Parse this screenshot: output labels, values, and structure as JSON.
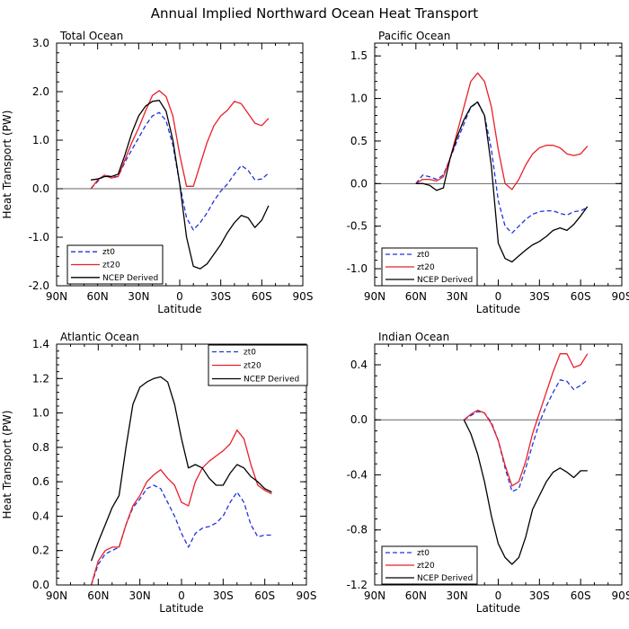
{
  "figure_title": "Annual Implied Northward Ocean Heat Transport",
  "colors": {
    "zt0": "#2233dd",
    "zt20": "#e8202a",
    "ncep": "#000000",
    "zero_line": "#666666"
  },
  "chart_data": [
    {
      "type": "line",
      "title": "Total Ocean",
      "xlabel": "Latitude",
      "ylabel": "Heat Transport (PW)",
      "xlim": [
        90,
        -90
      ],
      "ylim": [
        -2.0,
        3.0
      ],
      "xticks": [
        90,
        60,
        30,
        0,
        -30,
        -60,
        -90
      ],
      "xticklabels": [
        "90N",
        "60N",
        "30N",
        "0",
        "30S",
        "60S",
        "90S"
      ],
      "yticks": [
        -2.0,
        -1.0,
        0.0,
        1.0,
        2.0,
        3.0
      ],
      "yticklabels": [
        "-2.0",
        "-1.0",
        "0.0",
        "1.0",
        "2.0",
        "3.0"
      ],
      "legend": {
        "position": "bottom-left"
      },
      "series": [
        {
          "name": "zt0",
          "style": "dashed",
          "color": "#2233dd",
          "x": [
            65,
            60,
            55,
            50,
            45,
            40,
            35,
            30,
            25,
            20,
            15,
            10,
            5,
            0,
            -5,
            -10,
            -15,
            -20,
            -25,
            -30,
            -35,
            -40,
            -45,
            -50,
            -55,
            -60,
            -65
          ],
          "y": [
            0.0,
            0.15,
            0.28,
            0.25,
            0.25,
            0.55,
            0.8,
            1.05,
            1.3,
            1.5,
            1.57,
            1.4,
            0.9,
            0.1,
            -0.6,
            -0.85,
            -0.7,
            -0.5,
            -0.25,
            -0.05,
            0.1,
            0.3,
            0.48,
            0.38,
            0.18,
            0.2,
            0.32
          ]
        },
        {
          "name": "zt20",
          "style": "solid",
          "color": "#e8202a",
          "x": [
            65,
            60,
            55,
            50,
            45,
            40,
            35,
            30,
            25,
            20,
            15,
            10,
            5,
            0,
            -5,
            -10,
            -15,
            -20,
            -25,
            -30,
            -35,
            -40,
            -45,
            -50,
            -55,
            -60,
            -65
          ],
          "y": [
            0.0,
            0.18,
            0.28,
            0.22,
            0.25,
            0.6,
            0.95,
            1.25,
            1.6,
            1.92,
            2.02,
            1.9,
            1.5,
            0.7,
            0.05,
            0.05,
            0.5,
            0.95,
            1.3,
            1.5,
            1.62,
            1.8,
            1.75,
            1.55,
            1.35,
            1.3,
            1.45
          ]
        },
        {
          "name": "NCEP Derived",
          "style": "solid",
          "color": "#000000",
          "x": [
            65,
            60,
            55,
            50,
            45,
            40,
            35,
            30,
            25,
            20,
            15,
            10,
            5,
            0,
            -5,
            -10,
            -15,
            -20,
            -25,
            -30,
            -35,
            -40,
            -45,
            -50,
            -55,
            -60,
            -65
          ],
          "y": [
            0.18,
            0.2,
            0.25,
            0.25,
            0.3,
            0.7,
            1.15,
            1.5,
            1.7,
            1.8,
            1.82,
            1.6,
            1.0,
            0.1,
            -1.0,
            -1.6,
            -1.65,
            -1.55,
            -1.35,
            -1.15,
            -0.9,
            -0.7,
            -0.55,
            -0.6,
            -0.8,
            -0.65,
            -0.35
          ]
        }
      ]
    },
    {
      "type": "line",
      "title": "Pacific Ocean",
      "xlabel": "Latitude",
      "ylabel": "",
      "xlim": [
        90,
        -90
      ],
      "ylim": [
        -1.2,
        1.65
      ],
      "xticks": [
        90,
        60,
        30,
        0,
        -30,
        -60,
        -90
      ],
      "xticklabels": [
        "90N",
        "60N",
        "30N",
        "0",
        "30S",
        "60S",
        "90S"
      ],
      "yticks": [
        -1.0,
        -0.5,
        0.0,
        0.5,
        1.0,
        1.5
      ],
      "yticklabels": [
        "-1.0",
        "-0.5",
        "0.0",
        "0.5",
        "1.0",
        "1.5"
      ],
      "legend": {
        "position": "bottom-left"
      },
      "series": [
        {
          "name": "zt0",
          "style": "dashed",
          "color": "#2233dd",
          "x": [
            60,
            55,
            50,
            45,
            40,
            35,
            30,
            25,
            20,
            15,
            10,
            5,
            0,
            -5,
            -10,
            -15,
            -20,
            -25,
            -30,
            -35,
            -40,
            -45,
            -50,
            -55,
            -60,
            -65
          ],
          "y": [
            0.0,
            0.1,
            0.08,
            0.05,
            0.1,
            0.3,
            0.5,
            0.7,
            0.9,
            0.95,
            0.8,
            0.4,
            -0.2,
            -0.5,
            -0.58,
            -0.5,
            -0.42,
            -0.36,
            -0.33,
            -0.32,
            -0.32,
            -0.35,
            -0.37,
            -0.33,
            -0.32,
            -0.28
          ]
        },
        {
          "name": "zt20",
          "style": "solid",
          "color": "#e8202a",
          "x": [
            60,
            55,
            50,
            45,
            40,
            35,
            30,
            25,
            20,
            15,
            10,
            5,
            0,
            -5,
            -10,
            -15,
            -20,
            -25,
            -30,
            -35,
            -40,
            -45,
            -50,
            -55,
            -60,
            -65
          ],
          "y": [
            0.0,
            0.05,
            0.05,
            0.03,
            0.08,
            0.3,
            0.6,
            0.9,
            1.2,
            1.3,
            1.2,
            0.9,
            0.4,
            0.0,
            -0.07,
            0.05,
            0.22,
            0.35,
            0.42,
            0.45,
            0.45,
            0.42,
            0.35,
            0.33,
            0.35,
            0.44
          ]
        },
        {
          "name": "NCEP Derived",
          "style": "solid",
          "color": "#000000",
          "x": [
            60,
            55,
            50,
            45,
            40,
            35,
            30,
            25,
            20,
            15,
            10,
            5,
            0,
            -5,
            -10,
            -15,
            -20,
            -25,
            -30,
            -35,
            -40,
            -45,
            -50,
            -55,
            -60,
            -65
          ],
          "y": [
            0.0,
            0.0,
            -0.02,
            -0.08,
            -0.05,
            0.3,
            0.55,
            0.75,
            0.9,
            0.96,
            0.8,
            0.2,
            -0.7,
            -0.88,
            -0.92,
            -0.85,
            -0.78,
            -0.72,
            -0.68,
            -0.62,
            -0.55,
            -0.52,
            -0.55,
            -0.48,
            -0.38,
            -0.27
          ]
        }
      ]
    },
    {
      "type": "line",
      "title": "Atlantic Ocean",
      "xlabel": "Latitude",
      "ylabel": "Heat Transport (PW)",
      "xlim": [
        90,
        -90
      ],
      "ylim": [
        0.0,
        1.4
      ],
      "xticks": [
        90,
        60,
        30,
        0,
        -30,
        -60,
        -90
      ],
      "xticklabels": [
        "90N",
        "60N",
        "30N",
        "0",
        "30S",
        "60S",
        "90S"
      ],
      "yticks": [
        0.0,
        0.2,
        0.4,
        0.6,
        0.8,
        1.0,
        1.2,
        1.4
      ],
      "yticklabels": [
        "0.0",
        "0.2",
        "0.4",
        "0.6",
        "0.8",
        "1.0",
        "1.2",
        "1.4"
      ],
      "legend": {
        "position": "top-right"
      },
      "series": [
        {
          "name": "zt0",
          "style": "dashed",
          "color": "#2233dd",
          "x": [
            65,
            60,
            55,
            50,
            45,
            40,
            35,
            30,
            25,
            20,
            15,
            10,
            5,
            0,
            -5,
            -10,
            -15,
            -20,
            -25,
            -30,
            -35,
            -40,
            -45,
            -50,
            -55,
            -60,
            -65
          ],
          "y": [
            0.0,
            0.12,
            0.18,
            0.2,
            0.22,
            0.35,
            0.45,
            0.5,
            0.56,
            0.58,
            0.56,
            0.48,
            0.4,
            0.3,
            0.22,
            0.3,
            0.33,
            0.34,
            0.36,
            0.4,
            0.48,
            0.54,
            0.48,
            0.35,
            0.28,
            0.29,
            0.29
          ]
        },
        {
          "name": "zt20",
          "style": "solid",
          "color": "#e8202a",
          "x": [
            65,
            60,
            55,
            50,
            45,
            40,
            35,
            30,
            25,
            20,
            15,
            10,
            5,
            0,
            -5,
            -10,
            -15,
            -20,
            -25,
            -30,
            -35,
            -40,
            -45,
            -50,
            -55,
            -60,
            -65
          ],
          "y": [
            0.0,
            0.14,
            0.2,
            0.22,
            0.22,
            0.35,
            0.46,
            0.52,
            0.6,
            0.64,
            0.67,
            0.62,
            0.58,
            0.48,
            0.46,
            0.6,
            0.68,
            0.72,
            0.75,
            0.78,
            0.82,
            0.9,
            0.85,
            0.7,
            0.58,
            0.55,
            0.53
          ]
        },
        {
          "name": "NCEP Derived",
          "style": "solid",
          "color": "#000000",
          "x": [
            65,
            60,
            55,
            50,
            45,
            40,
            35,
            30,
            25,
            20,
            15,
            10,
            5,
            0,
            -5,
            -10,
            -15,
            -20,
            -25,
            -30,
            -35,
            -40,
            -45,
            -50,
            -55,
            -60,
            -65
          ],
          "y": [
            0.14,
            0.25,
            0.35,
            0.45,
            0.52,
            0.8,
            1.05,
            1.15,
            1.18,
            1.2,
            1.21,
            1.18,
            1.05,
            0.85,
            0.68,
            0.7,
            0.68,
            0.62,
            0.58,
            0.58,
            0.65,
            0.7,
            0.68,
            0.63,
            0.6,
            0.56,
            0.54
          ]
        }
      ]
    },
    {
      "type": "line",
      "title": "Indian Ocean",
      "xlabel": "Latitude",
      "ylabel": "",
      "xlim": [
        90,
        -90
      ],
      "ylim": [
        -1.2,
        0.55
      ],
      "xticks": [
        90,
        60,
        30,
        0,
        -30,
        -60,
        -90
      ],
      "xticklabels": [
        "90N",
        "60N",
        "30N",
        "0",
        "30S",
        "60S",
        "90S"
      ],
      "yticks": [
        -1.2,
        -0.8,
        -0.4,
        0.0,
        0.4
      ],
      "yticklabels": [
        "-1.2",
        "-0.8",
        "-0.4",
        "0.0",
        "0.4"
      ],
      "legend": {
        "position": "bottom-left"
      },
      "series": [
        {
          "name": "zt0",
          "style": "dashed",
          "color": "#2233dd",
          "x": [
            25,
            20,
            15,
            10,
            5,
            0,
            -5,
            -10,
            -15,
            -20,
            -25,
            -30,
            -35,
            -40,
            -45,
            -50,
            -55,
            -60,
            -65
          ],
          "y": [
            0.0,
            0.03,
            0.06,
            0.05,
            -0.02,
            -0.15,
            -0.35,
            -0.52,
            -0.5,
            -0.35,
            -0.18,
            -0.02,
            0.1,
            0.2,
            0.29,
            0.28,
            0.22,
            0.25,
            0.29
          ]
        },
        {
          "name": "zt20",
          "style": "solid",
          "color": "#e8202a",
          "x": [
            25,
            20,
            15,
            10,
            5,
            0,
            -5,
            -10,
            -15,
            -20,
            -25,
            -30,
            -35,
            -40,
            -45,
            -50,
            -55,
            -60,
            -65
          ],
          "y": [
            0.0,
            0.04,
            0.07,
            0.05,
            -0.03,
            -0.15,
            -0.33,
            -0.48,
            -0.45,
            -0.3,
            -0.1,
            0.05,
            0.2,
            0.35,
            0.48,
            0.48,
            0.38,
            0.4,
            0.48
          ]
        },
        {
          "name": "NCEP Derived",
          "style": "solid",
          "color": "#000000",
          "x": [
            25,
            20,
            15,
            10,
            5,
            0,
            -5,
            -10,
            -15,
            -20,
            -25,
            -30,
            -35,
            -40,
            -45,
            -50,
            -55,
            -60,
            -65
          ],
          "y": [
            0.0,
            -0.1,
            -0.25,
            -0.45,
            -0.7,
            -0.9,
            -1.0,
            -1.05,
            -1.0,
            -0.85,
            -0.65,
            -0.55,
            -0.45,
            -0.38,
            -0.35,
            -0.38,
            -0.42,
            -0.37,
            -0.37
          ]
        }
      ]
    }
  ]
}
